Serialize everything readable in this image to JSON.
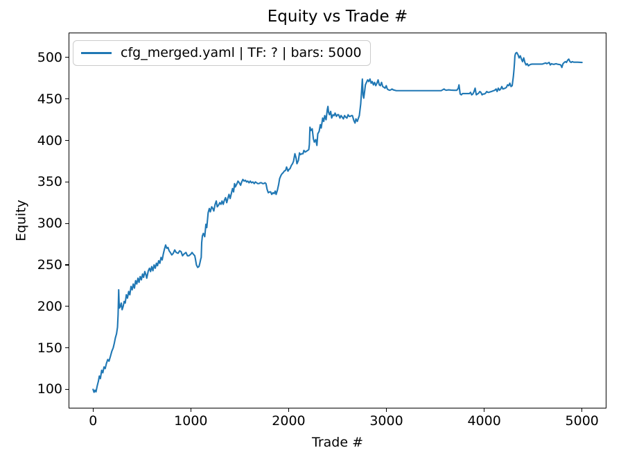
{
  "chart_data": {
    "type": "line",
    "title": "Equity vs Trade #",
    "xlabel": "Trade #",
    "ylabel": "Equity",
    "legend": {
      "position": "upper left",
      "entries": [
        {
          "label": "cfg_merged.yaml | TF: ? | bars: 5000",
          "color": "#1f77b4"
        }
      ]
    },
    "grid": false,
    "xlim": [
      -250,
      5250
    ],
    "ylim": [
      77,
      530
    ],
    "xticks": [
      0,
      1000,
      2000,
      3000,
      4000,
      5000
    ],
    "yticks": [
      100,
      150,
      200,
      250,
      300,
      350,
      400,
      450,
      500
    ],
    "series": [
      {
        "name": "cfg_merged.yaml | TF: ? | bars: 5000",
        "color": "#1f77b4",
        "x": [
          0,
          10,
          20,
          30,
          42,
          55,
          64,
          75,
          88,
          100,
          112,
          124,
          136,
          150,
          163,
          178,
          192,
          206,
          218,
          228,
          240,
          250,
          256,
          262,
          266,
          270,
          278,
          288,
          297,
          308,
          318,
          329,
          340,
          352,
          364,
          376,
          388,
          400,
          411,
          423,
          435,
          447,
          459,
          470,
          482,
          494,
          506,
          517,
          529,
          541,
          549,
          565,
          577,
          588,
          600,
          612,
          624,
          636,
          648,
          659,
          671,
          683,
          695,
          707,
          718,
          730,
          742,
          754,
          766,
          778,
          790,
          805,
          820,
          835,
          850,
          870,
          885,
          900,
          915,
          929,
          950,
          965,
          980,
          1000,
          1012,
          1025,
          1040,
          1047,
          1057,
          1070,
          1083,
          1092,
          1101,
          1106,
          1111,
          1118,
          1128,
          1135,
          1142,
          1154,
          1163,
          1177,
          1189,
          1199,
          1213,
          1225,
          1235,
          1248,
          1260,
          1270,
          1283,
          1296,
          1308,
          1319,
          1331,
          1343,
          1355,
          1367,
          1378,
          1390,
          1402,
          1414,
          1426,
          1437,
          1447,
          1455,
          1472,
          1482,
          1495,
          1509,
          1520,
          1532,
          1545,
          1558,
          1570,
          1582,
          1595,
          1608,
          1620,
          1634,
          1648,
          1660,
          1672,
          1684,
          1696,
          1710,
          1722,
          1734,
          1746,
          1758,
          1768,
          1780,
          1792,
          1805,
          1816,
          1827,
          1840,
          1852,
          1863,
          1872,
          1885,
          1898,
          1908,
          1922,
          1933,
          1943,
          1955,
          1969,
          1979,
          1993,
          2003,
          2014,
          2028,
          2040,
          2050,
          2064,
          2076,
          2085,
          2100,
          2111,
          2121,
          2135,
          2147,
          2156,
          2170,
          2182,
          2195,
          2206,
          2212,
          2218,
          2227,
          2241,
          2253,
          2263,
          2277,
          2289,
          2298,
          2312,
          2324,
          2333,
          2348,
          2359,
          2369,
          2383,
          2395,
          2402,
          2408,
          2418,
          2430,
          2440,
          2454,
          2466,
          2475,
          2489,
          2500,
          2511,
          2525,
          2536,
          2548,
          2560,
          2572,
          2584,
          2596,
          2608,
          2620,
          2631,
          2642,
          2652,
          2667,
          2679,
          2688,
          2702,
          2714,
          2723,
          2737,
          2745,
          2750,
          2754,
          2761,
          2768,
          2778,
          2785,
          2796,
          2808,
          2820,
          2832,
          2844,
          2855,
          2867,
          2879,
          2891,
          2903,
          2915,
          2927,
          2938,
          2950,
          2962,
          2975,
          2986,
          2998,
          3009,
          3021,
          3033,
          3045,
          3057,
          3070,
          3085,
          3100,
          3160,
          3240,
          3320,
          3400,
          3480,
          3560,
          3589,
          3600,
          3612,
          3636,
          3660,
          3690,
          3720,
          3735,
          3742,
          3754,
          3766,
          3778,
          3800,
          3825,
          3849,
          3860,
          3872,
          3884,
          3896,
          3907,
          3919,
          3931,
          3943,
          3955,
          3966,
          3978,
          3990,
          4002,
          4014,
          4026,
          4037,
          4049,
          4061,
          4073,
          4085,
          4097,
          4108,
          4121,
          4132,
          4144,
          4156,
          4168,
          4180,
          4191,
          4203,
          4215,
          4227,
          4239,
          4251,
          4262,
          4274,
          4286,
          4298,
          4305,
          4310,
          4314,
          4321,
          4333,
          4345,
          4357,
          4369,
          4381,
          4392,
          4404,
          4416,
          4428,
          4440,
          4452,
          4463,
          4475,
          4490,
          4530,
          4570,
          4593,
          4605,
          4629,
          4640,
          4664,
          4676,
          4688,
          4700,
          4712,
          4735,
          4747,
          4759,
          4771,
          4783,
          4794,
          4806,
          4818,
          4830,
          4841,
          4853,
          4865,
          4877,
          4889,
          4900,
          4915,
          4955,
          5000
        ],
        "y": [
          100,
          96.5,
          99,
          97,
          104,
          110,
          116,
          113,
          123,
          120,
          127,
          125,
          131,
          136,
          134,
          140,
          146,
          150,
          156,
          162,
          167,
          175,
          190,
          220,
          205,
          198,
          200,
          204,
          196,
          200,
          206,
          204,
          214,
          210,
          218,
          214,
          224,
          220,
          227,
          222,
          231,
          227,
          234,
          229,
          236,
          232,
          239,
          235,
          242,
          238,
          234,
          243,
          246,
          242,
          248,
          243,
          250,
          246,
          252,
          249,
          255,
          252,
          259,
          256,
          263,
          269,
          274,
          270,
          271,
          267,
          265,
          262,
          264,
          268,
          265,
          264,
          267,
          266,
          261,
          263,
          265,
          261,
          261,
          263,
          265,
          263,
          261,
          257,
          250,
          247,
          248,
          252,
          257,
          259,
          277,
          285,
          288,
          286,
          284,
          299,
          295,
          313,
          318,
          314,
          320,
          318,
          315,
          323,
          327,
          320,
          322,
          325,
          323,
          327,
          323,
          328,
          331,
          325,
          330,
          335,
          330,
          336,
          342,
          338,
          348,
          344,
          348,
          351,
          349,
          346,
          350,
          353,
          351,
          352,
          350,
          351,
          349,
          351,
          349,
          350,
          348,
          350,
          349,
          348,
          348,
          349,
          349,
          348,
          348,
          349,
          348,
          341,
          337,
          338,
          338,
          335,
          337,
          336,
          339,
          335,
          340,
          347,
          354,
          358,
          360,
          361,
          363,
          364,
          368,
          363,
          365,
          366,
          370,
          372,
          375,
          384,
          379,
          372,
          376,
          385,
          383,
          384,
          384,
          388,
          386,
          387,
          388,
          389,
          395,
          416,
          412,
          414,
          402,
          398,
          401,
          394,
          408,
          411,
          419,
          415,
          427,
          423,
          430,
          425,
          437,
          441,
          434,
          431,
          435,
          427,
          431,
          430,
          433,
          429,
          431,
          431,
          427,
          430,
          428,
          426,
          430,
          428,
          427,
          431,
          429,
          429,
          430,
          430,
          424,
          421,
          426,
          423,
          427,
          430,
          444,
          458,
          467,
          474,
          455,
          451,
          460,
          467,
          470,
          473,
          471,
          474,
          469,
          471,
          467,
          470,
          466,
          469,
          473,
          467,
          466,
          470,
          465,
          464,
          463,
          466,
          462,
          461,
          460.5,
          461,
          462,
          461,
          460.5,
          460,
          460,
          460,
          460,
          460,
          460,
          460,
          462,
          461,
          460.5,
          461,
          460.7,
          460.5,
          460.5,
          463,
          467,
          456,
          455,
          456.5,
          456.5,
          456.5,
          456.5,
          458,
          455,
          456,
          459,
          463,
          455,
          456,
          457,
          459,
          458,
          455,
          456,
          456,
          457,
          459,
          458,
          458,
          458.5,
          459,
          459.5,
          460,
          460.5,
          462,
          459,
          463,
          460.5,
          462,
          465,
          462,
          462.5,
          463,
          464,
          467,
          466,
          469,
          465,
          466,
          477,
          486,
          494,
          502,
          505,
          506,
          503.5,
          499.5,
          502,
          498,
          495,
          499.5,
          494,
          491,
          492.5,
          490,
          491,
          491.7,
          492,
          492,
          492,
          492,
          492.5,
          493.4,
          492.5,
          494,
          491,
          492.5,
          492,
          491.7,
          492.5,
          492,
          491.7,
          491.5,
          491,
          488,
          492.5,
          494,
          495,
          494,
          496.7,
          498,
          495,
          494,
          495,
          494.3,
          494.3,
          494
        ]
      }
    ]
  },
  "colors": {
    "line": "#1f77b4",
    "legend_border": "#cbcbcb",
    "text": "#000000",
    "background": "#ffffff"
  }
}
